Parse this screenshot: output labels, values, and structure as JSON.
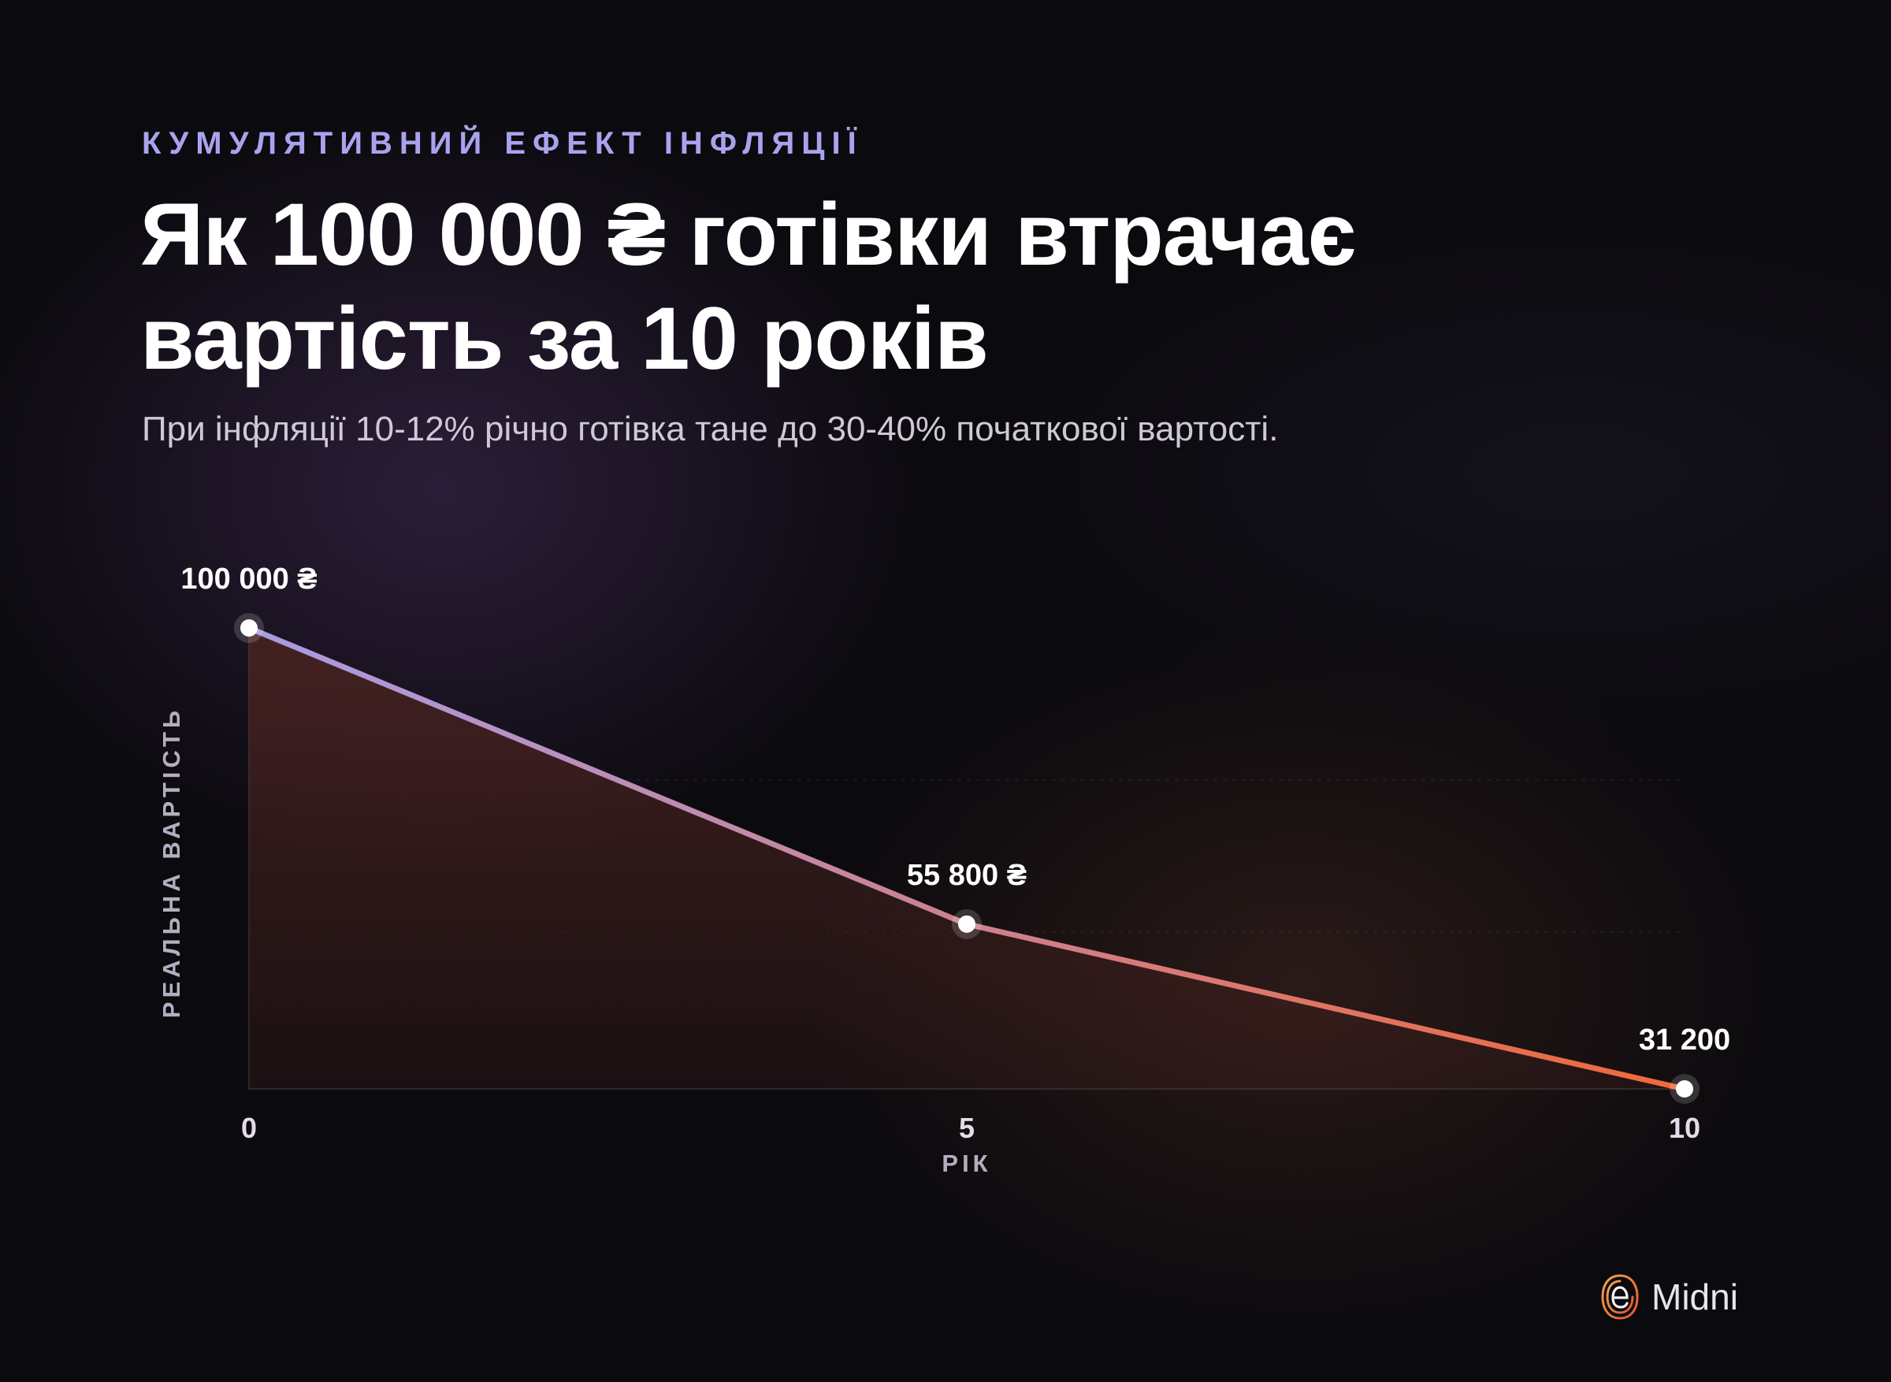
{
  "header": {
    "eyebrow": "КУМУЛЯТИВНИЙ ЕФЕКТ ІНФЛЯЦІЇ",
    "title": "Як 100 000 ₴ готівки втрачає вартість за 10 років",
    "subtitle": "При інфляції 10-12% річно готівка тане до 30-40% початкової вартості."
  },
  "chart_data": {
    "type": "area",
    "title": "Як 100 000 ₴ готівки втрачає вартість за 10 років",
    "xlabel": "РІК",
    "ylabel": "РЕАЛЬНА ВАРТІСТЬ",
    "x": [
      0,
      5,
      10
    ],
    "x_tick_labels": [
      "0",
      "5",
      "10"
    ],
    "series": [
      {
        "values": [
          100000,
          55800,
          31200
        ],
        "data_labels": [
          "100 000 ₴",
          "55 800 ₴",
          "31 200"
        ]
      }
    ],
    "ylim": [
      31200,
      100000
    ],
    "grid": true,
    "legend": "none"
  },
  "colors": {
    "line_start": "#a99be3",
    "line_end": "#f0683a",
    "fill_top": "#4a2320",
    "eyebrow": "#a9a3ee"
  },
  "brand": {
    "name": "Midni",
    "icon": "fingerprint-e-logo-icon"
  }
}
